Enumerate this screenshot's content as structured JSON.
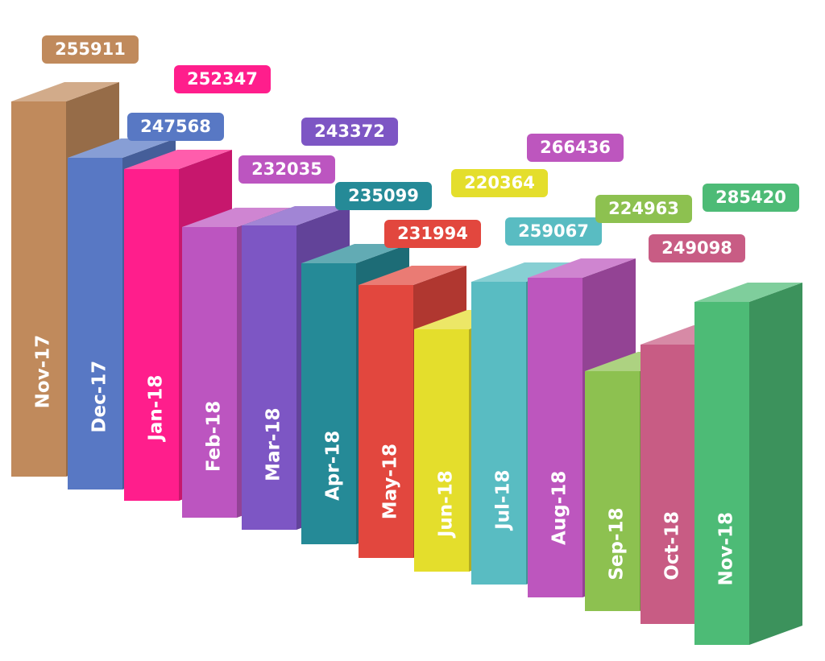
{
  "chart_data": {
    "type": "bar",
    "categories": [
      "Nov-17",
      "Dec-17",
      "Jan-18",
      "Feb-18",
      "Mar-18",
      "Apr-18",
      "May-18",
      "Jun-18",
      "Jul-18",
      "Aug-18",
      "Sep-18",
      "Oct-18",
      "Nov-18"
    ],
    "values": [
      255911,
      247568,
      252347,
      232035,
      243372,
      235099,
      231994,
      220364,
      259067,
      266436,
      224963,
      249098,
      285420
    ],
    "colors": [
      "#C08A5C",
      "#5878C4",
      "#FF1E8C",
      "#BC55C0",
      "#7D56C4",
      "#258A97",
      "#E2473E",
      "#E4DE2C",
      "#59BCC2",
      "#BD56BE",
      "#8DC150",
      "#C85C84",
      "#4DBB76"
    ],
    "title": "",
    "xlabel": "",
    "ylabel": ""
  }
}
